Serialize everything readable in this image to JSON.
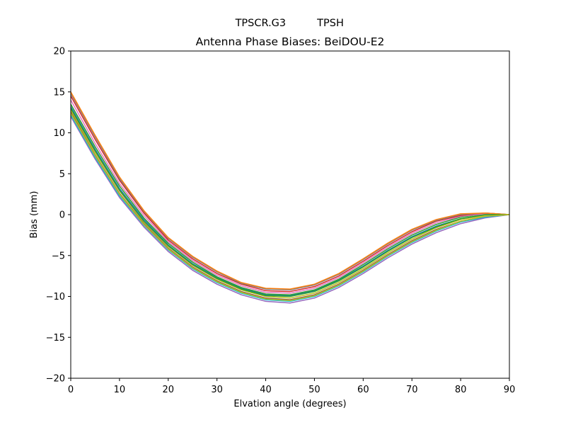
{
  "suptitle": {
    "left": "TPSCR.G3",
    "right": "TPSH"
  },
  "chart_data": {
    "type": "line",
    "title": "Antenna Phase Biases: BeiDOU-E2",
    "xlabel": "Elvation angle (degrees)",
    "ylabel": "Bias (mm)",
    "xlim": [
      0,
      90
    ],
    "ylim": [
      -20,
      20
    ],
    "xticks": [
      0,
      10,
      20,
      30,
      40,
      50,
      60,
      70,
      80,
      90
    ],
    "xtick_labels": [
      "0",
      "10",
      "20",
      "30",
      "40",
      "50",
      "60",
      "70",
      "80",
      "90"
    ],
    "yticks": [
      -20,
      -15,
      -10,
      -5,
      0,
      5,
      10,
      15,
      20
    ],
    "ytick_labels": [
      "−20",
      "−15",
      "−10",
      "−5",
      "0",
      "5",
      "10",
      "15",
      "20"
    ],
    "grid": false,
    "legend": "none",
    "x": [
      0,
      5,
      10,
      15,
      20,
      25,
      30,
      35,
      40,
      45,
      50,
      55,
      60,
      65,
      70,
      75,
      80,
      85,
      90
    ],
    "series": [
      {
        "color": "#9467bd",
        "values": [
          12.0,
          6.8,
          2.1,
          -1.5,
          -4.5,
          -6.8,
          -8.5,
          -9.8,
          -10.6,
          -10.8,
          -10.2,
          -8.9,
          -7.2,
          -5.3,
          -3.6,
          -2.2,
          -1.1,
          -0.4,
          0.0
        ]
      },
      {
        "color": "#17becf",
        "values": [
          12.2,
          7.0,
          2.3,
          -1.3,
          -4.3,
          -6.6,
          -8.3,
          -9.6,
          -10.4,
          -10.6,
          -10.0,
          -8.7,
          -7.0,
          -5.1,
          -3.4,
          -2.0,
          -0.9,
          -0.3,
          0.0
        ]
      },
      {
        "color": "#8c564b",
        "values": [
          12.6,
          7.3,
          2.6,
          -1.1,
          -4.1,
          -6.4,
          -8.1,
          -9.4,
          -10.2,
          -10.4,
          -9.8,
          -8.5,
          -6.8,
          -4.9,
          -3.2,
          -1.8,
          -0.8,
          -0.2,
          0.0
        ]
      },
      {
        "color": "#bcbd22",
        "values": [
          12.8,
          7.6,
          2.9,
          -0.9,
          -3.9,
          -6.2,
          -7.9,
          -9.2,
          -10.0,
          -10.2,
          -9.6,
          -8.3,
          -6.6,
          -4.7,
          -3.0,
          -1.6,
          -0.6,
          -0.1,
          0.0
        ]
      },
      {
        "color": "#1f77b4",
        "values": [
          13.2,
          8.0,
          3.2,
          -0.6,
          -3.7,
          -6.0,
          -7.7,
          -9.0,
          -9.8,
          -9.9,
          -9.3,
          -8.0,
          -6.3,
          -4.4,
          -2.7,
          -1.4,
          -0.5,
          0.0,
          0.0
        ]
      },
      {
        "color": "#2ca02c",
        "values": [
          13.5,
          8.3,
          3.5,
          -0.4,
          -3.5,
          -5.8,
          -7.6,
          -8.9,
          -9.7,
          -9.8,
          -9.2,
          -7.9,
          -6.1,
          -4.2,
          -2.5,
          -1.2,
          -0.3,
          0.1,
          0.0
        ]
      },
      {
        "color": "#e377c2",
        "values": [
          14.0,
          8.7,
          3.8,
          -0.1,
          -3.3,
          -5.6,
          -7.4,
          -8.7,
          -9.5,
          -9.6,
          -9.0,
          -7.7,
          -5.9,
          -4.0,
          -2.3,
          -1.0,
          -0.2,
          0.1,
          0.0
        ]
      },
      {
        "color": "#d62728",
        "values": [
          14.5,
          9.2,
          4.2,
          0.2,
          -3.1,
          -5.4,
          -7.2,
          -8.5,
          -9.3,
          -9.4,
          -8.8,
          -7.5,
          -5.7,
          -3.8,
          -2.1,
          -0.8,
          -0.1,
          0.2,
          0.0
        ]
      },
      {
        "color": "#7f7f7f",
        "values": [
          14.8,
          9.5,
          4.4,
          0.4,
          -2.9,
          -5.2,
          -7.0,
          -8.4,
          -9.1,
          -9.2,
          -8.6,
          -7.3,
          -5.5,
          -3.6,
          -1.9,
          -0.7,
          0.0,
          0.2,
          0.0
        ]
      },
      {
        "color": "#ff7f0e",
        "values": [
          15.0,
          9.7,
          4.6,
          0.5,
          -2.8,
          -5.1,
          -6.9,
          -8.3,
          -9.0,
          -9.1,
          -8.5,
          -7.2,
          -5.4,
          -3.5,
          -1.8,
          -0.6,
          0.1,
          0.2,
          0.0
        ]
      },
      {
        "color": "#2ca02c",
        "values": [
          13.0,
          7.8,
          3.0,
          -0.8,
          -3.8,
          -6.1,
          -7.8,
          -9.1,
          -9.9,
          -10.0,
          -9.4,
          -8.1,
          -6.4,
          -4.5,
          -2.8,
          -1.5,
          -0.5,
          0.0,
          0.0
        ]
      },
      {
        "color": "#bcbd22",
        "values": [
          12.4,
          7.2,
          2.5,
          -1.2,
          -4.2,
          -6.5,
          -8.2,
          -9.5,
          -10.3,
          -10.5,
          -9.9,
          -8.6,
          -6.9,
          -5.0,
          -3.3,
          -1.9,
          -0.8,
          -0.2,
          0.0
        ]
      }
    ]
  }
}
